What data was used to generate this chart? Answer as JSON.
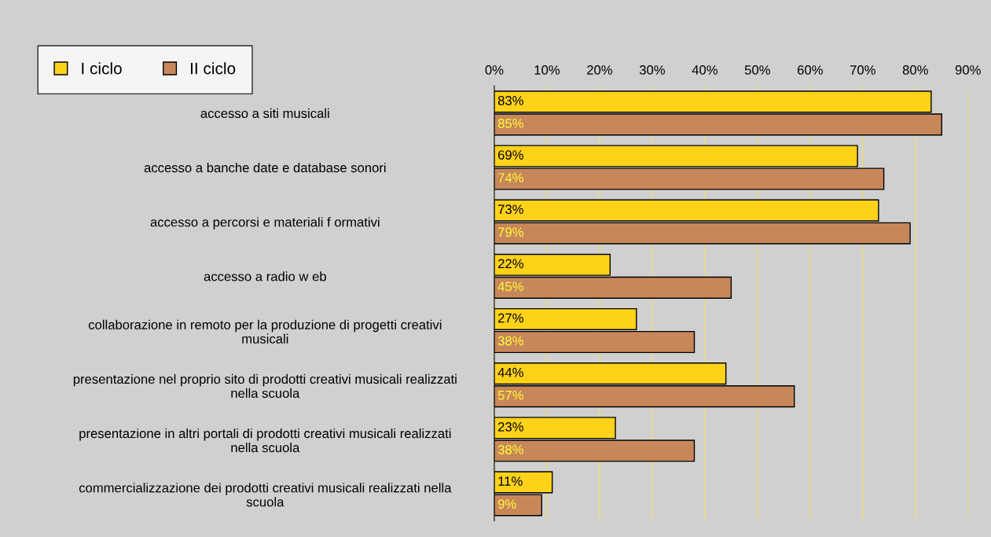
{
  "chart_data": {
    "type": "bar",
    "orientation": "horizontal",
    "categories": [
      "accesso a siti musicali",
      "accesso a banche date e database sonori",
      "accesso a percorsi e materiali f ormativi",
      "accesso a radio w eb",
      "collaborazione in remoto per la produzione di progetti creativi\nmusicali",
      "presentazione nel proprio sito di prodotti creativi musicali realizzati\nnella scuola",
      "presentazione in altri portali di prodotti creativi musicali realizzati\nnella scuola",
      "commercializzazione dei prodotti creativi musicali realizzati nella\nscuola"
    ],
    "series": [
      {
        "name": "I ciclo",
        "color": "#ffd21a",
        "values": [
          83,
          69,
          73,
          22,
          27,
          44,
          23,
          11
        ],
        "value_labels": [
          "83%",
          "69%",
          "73%",
          "22%",
          "27%",
          "44%",
          "23%",
          "11%"
        ]
      },
      {
        "name": "II ciclo",
        "color": "#c8875a",
        "values": [
          85,
          74,
          79,
          45,
          38,
          57,
          38,
          9
        ],
        "value_labels": [
          "85%",
          "74%",
          "79%",
          "45%",
          "38%",
          "57%",
          "38%",
          "9%"
        ]
      }
    ],
    "xlim": [
      0,
      90
    ],
    "xticks": [
      {
        "value": 0,
        "label": "0%"
      },
      {
        "value": 10,
        "label": "10%"
      },
      {
        "value": 20,
        "label": "20%"
      },
      {
        "value": 30,
        "label": "30%"
      },
      {
        "value": 40,
        "label": "40%"
      },
      {
        "value": 50,
        "label": "50%"
      },
      {
        "value": 60,
        "label": "60%"
      },
      {
        "value": 70,
        "label": "70%"
      },
      {
        "value": 80,
        "label": "80%"
      },
      {
        "value": 90,
        "label": "90%"
      }
    ],
    "grid": "x",
    "legend": "top left"
  }
}
